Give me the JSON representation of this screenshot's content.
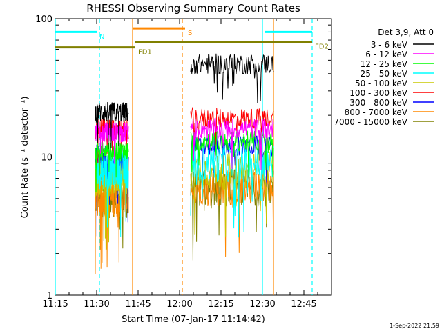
{
  "chart_data": {
    "type": "line",
    "title": "RHESSI Observing Summary Count Rates",
    "xlabel": "Start Time (07-Jan-17 11:14:42)",
    "ylabel": "Count Rate (s⁻¹ detector⁻¹)",
    "y_scale": "log",
    "ylim": [
      1,
      100
    ],
    "xlim_minutes_since_midnight": [
      675,
      775
    ],
    "x_ticks": [
      "11:15",
      "11:30",
      "11:45",
      "12:00",
      "12:15",
      "12:30",
      "12:45"
    ],
    "y_ticks": [
      "1",
      "10",
      "100"
    ],
    "legend_title": "Det 3,9, Att 0",
    "legend_position": "right",
    "footer_date": "1-Sep-2022 21:59",
    "segments": [
      {
        "start": "11:29:30",
        "end": "11:41:30"
      },
      {
        "start": "12:04:00",
        "end": "12:34:00"
      }
    ],
    "series": [
      {
        "name": "3 - 6 keV",
        "color": "#000000",
        "seg1_level": 21,
        "seg2_level": 47
      },
      {
        "name": "6 - 12 keV",
        "color": "#ff00ff",
        "seg1_level": 15,
        "seg2_level": 16
      },
      {
        "name": "12 - 25 keV",
        "color": "#00ff00",
        "seg1_level": 11,
        "seg2_level": 13
      },
      {
        "name": "25 - 50 keV",
        "color": "#00ffff",
        "seg1_level": 8,
        "seg2_level": 9
      },
      {
        "name": "50 - 100 keV",
        "color": "#c8c800",
        "seg1_level": 7,
        "seg2_level": 8
      },
      {
        "name": "100 - 300 keV",
        "color": "#ff0000",
        "seg1_level": 16,
        "seg2_level": 19
      },
      {
        "name": "300 - 800 keV",
        "color": "#0000ff",
        "seg1_level": 9,
        "seg2_level": 12
      },
      {
        "name": "800 - 7000 keV",
        "color": "#ff8800",
        "seg1_level": 5,
        "seg2_level": 6
      },
      {
        "name": "7000 - 15000 keV",
        "color": "#808000",
        "seg1_level": 5,
        "seg2_level": 6
      }
    ],
    "flag_bars": [
      {
        "label": "N",
        "color": "#00ffff",
        "ranges": [
          [
            "11:15",
            "11:30"
          ],
          [
            "12:31",
            "12:48"
          ]
        ],
        "level": 80
      },
      {
        "label": "S",
        "color": "#ff8800",
        "ranges": [
          [
            "11:43",
            "12:02"
          ]
        ],
        "level": 85
      },
      {
        "label": "FD1",
        "color": "#808000",
        "ranges": [
          [
            "11:15",
            "11:44"
          ]
        ],
        "level": 62
      },
      {
        "label": "FD2",
        "color": "#808000",
        "ranges": [
          [
            "11:44",
            "12:48"
          ]
        ],
        "level": 68
      }
    ],
    "vertical_lines": [
      {
        "time": "11:15",
        "color": "#00ffff",
        "style": "solid"
      },
      {
        "time": "11:31",
        "color": "#00ffff",
        "style": "dashed"
      },
      {
        "time": "11:43",
        "color": "#ff8800",
        "style": "solid"
      },
      {
        "time": "12:01",
        "color": "#ff8800",
        "style": "dashed"
      },
      {
        "time": "12:30",
        "color": "#00ffff",
        "style": "solid"
      },
      {
        "time": "12:34",
        "color": "#ff8800",
        "style": "solid"
      },
      {
        "time": "12:48",
        "color": "#00ffff",
        "style": "dashed"
      }
    ]
  }
}
